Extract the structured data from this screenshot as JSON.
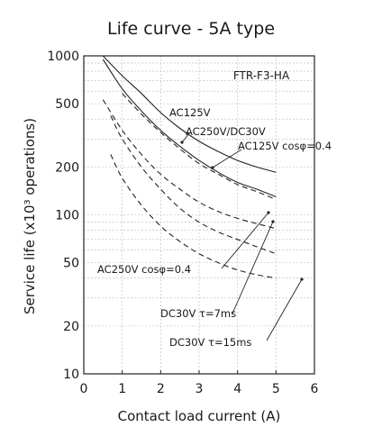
{
  "chart_data": {
    "type": "line",
    "title": "Life curve - 5A type",
    "model_label": "FTR-F3-HA",
    "xlabel": "Contact load current (A)",
    "ylabel": "Service life (x10³ operations)",
    "xlim": [
      0,
      6
    ],
    "ylim": [
      10,
      1000
    ],
    "yscale": "log",
    "x_ticks": [
      "0",
      "1",
      "2",
      "3",
      "4",
      "5",
      "6"
    ],
    "y_ticks": [
      "10",
      "20",
      "50",
      "100",
      "200",
      "500",
      "1000"
    ],
    "grid": true,
    "series": [
      {
        "name": "AC125V",
        "dash": "solid",
        "x": [
          0.5,
          1,
          1.5,
          2,
          2.5,
          3,
          3.5,
          4,
          4.5,
          5
        ],
        "y": [
          1000,
          750,
          580,
          440,
          350,
          290,
          250,
          220,
          200,
          185
        ]
      },
      {
        "name": "AC250V/DC30V",
        "dash": "solid",
        "x": [
          0.5,
          1,
          1.5,
          2,
          2.5,
          3,
          3.5,
          4,
          4.5,
          5
        ],
        "y": [
          950,
          620,
          450,
          340,
          270,
          220,
          185,
          160,
          145,
          130
        ]
      },
      {
        "name": "AC125V cosφ=0.4",
        "dash": "dashed",
        "x": [
          1,
          1.5,
          2,
          2.5,
          3,
          3.5,
          4,
          4.5,
          5
        ],
        "y": [
          580,
          430,
          330,
          260,
          210,
          180,
          155,
          140,
          125
        ]
      },
      {
        "name": "AC250V cosφ=0.4",
        "dash": "dashed",
        "x": [
          0.5,
          1,
          1.5,
          2,
          2.5,
          3,
          3.5,
          4,
          4.5,
          5
        ],
        "y": [
          530,
          340,
          240,
          180,
          145,
          120,
          105,
          95,
          88,
          82
        ]
      },
      {
        "name": "DC30V τ=7ms",
        "dash": "dashed",
        "x": [
          0.7,
          1,
          1.5,
          2,
          2.5,
          3,
          3.5,
          4,
          4.5,
          5
        ],
        "y": [
          420,
          300,
          200,
          145,
          110,
          90,
          78,
          70,
          63,
          57
        ]
      },
      {
        "name": "DC30V τ=15ms",
        "dash": "dashed",
        "x": [
          0.7,
          1,
          1.5,
          2,
          2.5,
          3,
          3.5,
          4,
          4.5,
          5
        ],
        "y": [
          240,
          170,
          115,
          85,
          68,
          57,
          50,
          45,
          42,
          40
        ]
      }
    ]
  }
}
